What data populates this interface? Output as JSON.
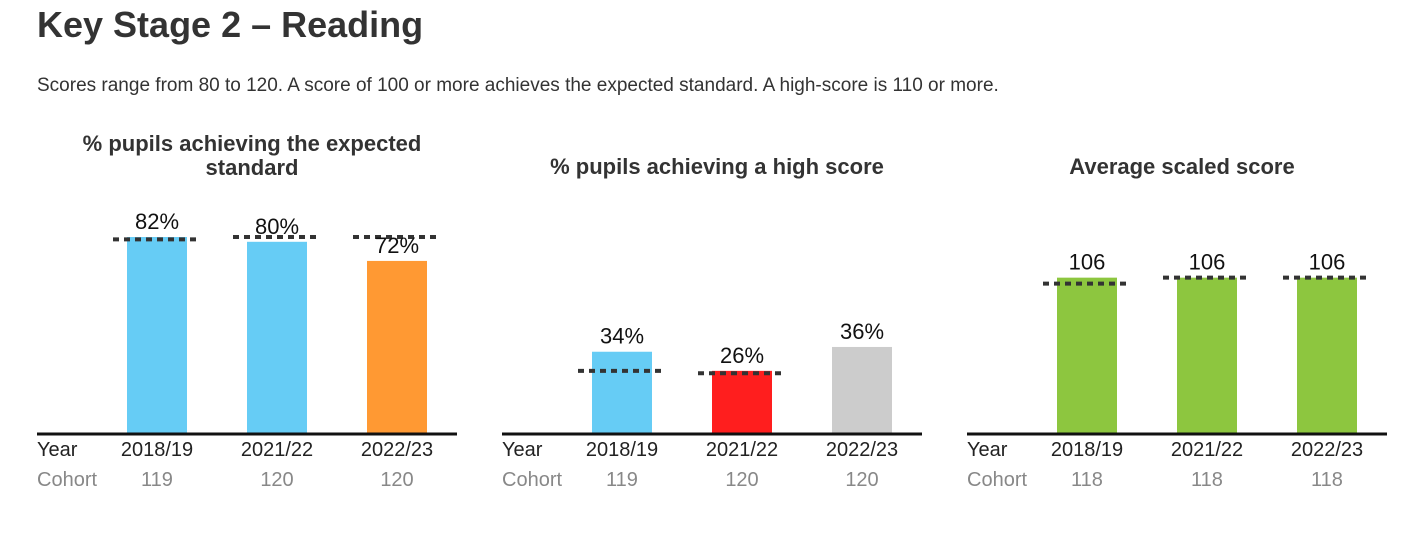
{
  "page": {
    "title": "Key Stage 2 – Reading",
    "subtitle": "Scores range from 80 to 120. A score of 100 or more achieves the expected standard. A high-score is 110 or more."
  },
  "labels": {
    "year": "Year",
    "cohort": "Cohort"
  },
  "chart_data": [
    {
      "type": "bar",
      "title": "% pupils achieving the expected standard",
      "title_lines": [
        "% pupils achieving the expected",
        "standard"
      ],
      "categories": [
        "2018/19",
        "2021/22",
        "2022/23"
      ],
      "values": [
        82,
        80,
        72
      ],
      "value_labels": [
        "82%",
        "80%",
        "72%"
      ],
      "benchmark": [
        81,
        82,
        82
      ],
      "cohort": [
        "119",
        "120",
        "120"
      ],
      "colors": [
        "#66ccf5",
        "#66ccf5",
        "#ff9933"
      ],
      "ylim": [
        0,
        100
      ],
      "grid": false,
      "legend": "none"
    },
    {
      "type": "bar",
      "title": "% pupils achieving a high score",
      "title_lines": [
        "% pupils achieving a high score"
      ],
      "categories": [
        "2018/19",
        "2021/22",
        "2022/23"
      ],
      "values": [
        34,
        26,
        36
      ],
      "value_labels": [
        "34%",
        "26%",
        "36%"
      ],
      "benchmark": [
        26,
        25,
        null
      ],
      "cohort": [
        "119",
        "120",
        "120"
      ],
      "colors": [
        "#66ccf5",
        "#ff1e1e",
        "#cccccc"
      ],
      "ylim": [
        0,
        100
      ],
      "grid": false,
      "legend": "none"
    },
    {
      "type": "bar",
      "title": "Average scaled score",
      "title_lines": [
        "Average scaled score"
      ],
      "categories": [
        "2018/19",
        "2021/22",
        "2022/23"
      ],
      "values": [
        106,
        106,
        106
      ],
      "value_labels": [
        "106",
        "106",
        "106"
      ],
      "benchmark": [
        105,
        106,
        106
      ],
      "cohort": [
        "118",
        "118",
        "118"
      ],
      "colors": [
        "#8dc63f",
        "#8dc63f",
        "#8dc63f"
      ],
      "ylim": [
        80,
        120
      ],
      "grid": false,
      "legend": "none"
    }
  ]
}
